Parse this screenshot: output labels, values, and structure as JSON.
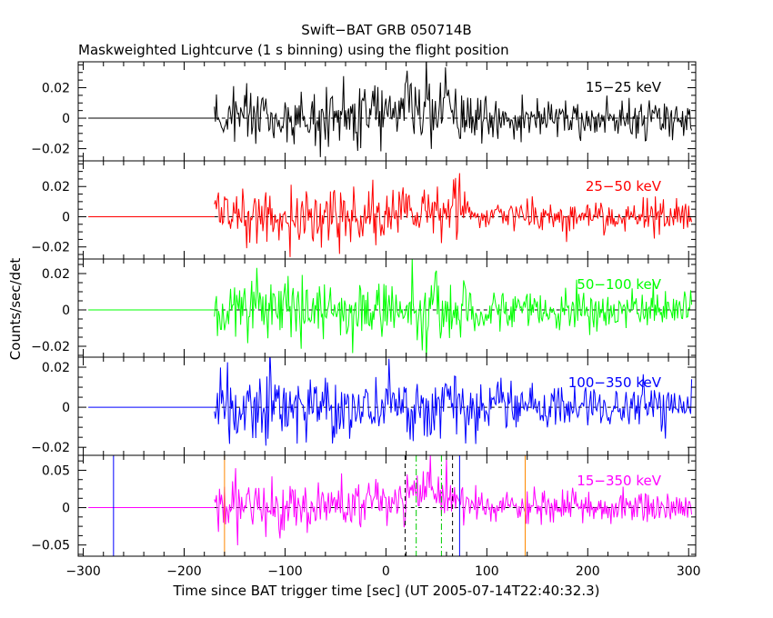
{
  "chart_data": {
    "type": "line",
    "title": "Swift−BAT GRB 050714B",
    "subtitle": "Maskweighted Lightcurve (1 s binning) using the flight position",
    "xlabel": "Time since BAT trigger time [sec] (UT 2005-07-14T22:40:32.3)",
    "ylabel": "Counts/sec/det",
    "xlim": [
      -305,
      307
    ],
    "x_ticks": [
      -300,
      -200,
      -100,
      0,
      100,
      200,
      300
    ],
    "x_tick_labels": [
      "−300",
      "−200",
      "−100",
      "0",
      "100",
      "200",
      "300"
    ],
    "data_start": -170,
    "data_end": 303,
    "flat_value": 0,
    "grid": false,
    "panels": [
      {
        "name": "15−25 keV",
        "color": "#000000",
        "ylim": [
          -0.028,
          0.037
        ],
        "y_ticks": [
          -0.02,
          0,
          0.02
        ],
        "y_tick_labels": [
          "−0.02",
          "0",
          "0.02"
        ],
        "noise_segments": [
          [
            -170,
            -60,
            0.0085
          ],
          [
            -60,
            80,
            0.011
          ],
          [
            80,
            303,
            0.0065
          ]
        ],
        "trend": [
          [
            -170,
            0.002
          ],
          [
            -100,
            0.0
          ],
          [
            -20,
            0.003
          ],
          [
            30,
            0.007
          ],
          [
            60,
            0.006
          ],
          [
            90,
            0.0
          ],
          [
            150,
            0.0
          ],
          [
            303,
            0.0
          ]
        ],
        "vlines": []
      },
      {
        "name": "25−50 keV",
        "color": "#ff0000",
        "ylim": [
          -0.028,
          0.037
        ],
        "y_ticks": [
          -0.02,
          0,
          0.02
        ],
        "y_tick_labels": [
          "−0.02",
          "0",
          "0.02"
        ],
        "noise_segments": [
          [
            -170,
            0,
            0.0085
          ],
          [
            0,
            80,
            0.009
          ],
          [
            80,
            303,
            0.0055
          ]
        ],
        "trend": [
          [
            -170,
            0.0
          ],
          [
            0,
            0.0
          ],
          [
            20,
            0.003
          ],
          [
            45,
            0.008
          ],
          [
            70,
            0.005
          ],
          [
            90,
            0.0
          ],
          [
            303,
            0.0
          ]
        ],
        "vlines": []
      },
      {
        "name": "50−100 keV",
        "color": "#00ff00",
        "ylim": [
          -0.026,
          0.028
        ],
        "y_ticks": [
          -0.02,
          0,
          0.02
        ],
        "y_tick_labels": [
          "−0.02",
          "0",
          "0.02"
        ],
        "noise_segments": [
          [
            -170,
            80,
            0.0085
          ],
          [
            80,
            303,
            0.0055
          ]
        ],
        "trend": [
          [
            -170,
            0.0
          ],
          [
            303,
            0.0
          ]
        ],
        "vlines": []
      },
      {
        "name": "100−350 keV",
        "color": "#0000ff",
        "ylim": [
          -0.024,
          0.025
        ],
        "y_ticks": [
          -0.02,
          0,
          0.02
        ],
        "y_tick_labels": [
          "−0.02",
          "0",
          "0.02"
        ],
        "noise_segments": [
          [
            -170,
            80,
            0.0075
          ],
          [
            80,
            303,
            0.0055
          ]
        ],
        "trend": [
          [
            -170,
            0.0
          ],
          [
            303,
            0.0
          ]
        ],
        "vlines": []
      },
      {
        "name": "15−350 keV",
        "color": "#ff00ff",
        "ylim": [
          -0.065,
          0.07
        ],
        "y_ticks": [
          -0.05,
          0,
          0.05
        ],
        "y_tick_labels": [
          "−0.05",
          "0",
          "0.05"
        ],
        "noise_segments": [
          [
            -170,
            0,
            0.017
          ],
          [
            0,
            80,
            0.018
          ],
          [
            80,
            303,
            0.011
          ]
        ],
        "trend": [
          [
            -170,
            0.0
          ],
          [
            -20,
            0.004
          ],
          [
            20,
            0.012
          ],
          [
            45,
            0.022
          ],
          [
            70,
            0.012
          ],
          [
            90,
            0.0
          ],
          [
            303,
            0.0
          ]
        ],
        "vlines": [
          {
            "x": -270,
            "color": "#0000ff",
            "style": "solid"
          },
          {
            "x": -160,
            "color": "#ff8800",
            "style": "solid"
          },
          {
            "x": 19,
            "color": "#000000",
            "style": "dashed"
          },
          {
            "x": 30,
            "color": "#00cc00",
            "style": "dashdot"
          },
          {
            "x": 55,
            "color": "#00cc00",
            "style": "dashdot"
          },
          {
            "x": 66,
            "color": "#000000",
            "style": "dashed"
          },
          {
            "x": 73,
            "color": "#0000ff",
            "style": "solid"
          },
          {
            "x": 138,
            "color": "#ff8800",
            "style": "solid"
          }
        ]
      }
    ]
  }
}
